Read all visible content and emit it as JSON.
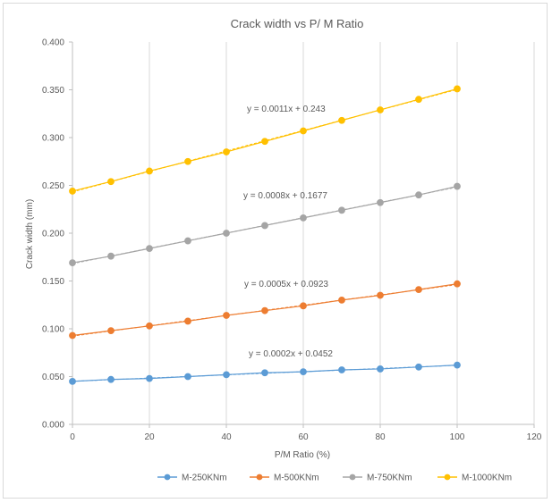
{
  "chart_data": {
    "type": "scatter",
    "title": "Crack width vs P/ M Ratio",
    "xlabel": "P/M Ratio (%)",
    "ylabel": "Crack width (mm)",
    "xlim": [
      0,
      120
    ],
    "ylim": [
      0,
      0.4
    ],
    "x_ticks": [
      "0",
      "20",
      "40",
      "60",
      "80",
      "100",
      "120"
    ],
    "y_ticks": [
      "0.000",
      "0.050",
      "0.100",
      "0.150",
      "0.200",
      "0.250",
      "0.300",
      "0.350",
      "0.400"
    ],
    "grid": "vertical",
    "legend_position": "bottom",
    "x": [
      0,
      10,
      20,
      30,
      40,
      50,
      60,
      70,
      80,
      90,
      100
    ],
    "series": [
      {
        "name": "M-250KNm",
        "color": "#5b9bd5",
        "trendline": true,
        "equation": "y = 0.0002x + 0.0452",
        "values": [
          0.045,
          0.047,
          0.048,
          0.05,
          0.052,
          0.054,
          0.055,
          0.057,
          0.058,
          0.06,
          0.062
        ]
      },
      {
        "name": "M-500KNm",
        "color": "#ed7d31",
        "trendline": true,
        "equation": "y = 0.0005x + 0.0923",
        "values": [
          0.093,
          0.098,
          0.103,
          0.108,
          0.114,
          0.119,
          0.124,
          0.13,
          0.135,
          0.141,
          0.147
        ]
      },
      {
        "name": "M-750KNm",
        "color": "#a5a5a5",
        "trendline": true,
        "equation": "y = 0.0008x + 0.1677",
        "values": [
          0.169,
          0.176,
          0.184,
          0.192,
          0.2,
          0.208,
          0.216,
          0.224,
          0.232,
          0.24,
          0.249
        ]
      },
      {
        "name": "M-1000KNm",
        "color": "#ffc000",
        "trendline": true,
        "equation": "y = 0.0011x + 0.243",
        "values": [
          0.244,
          0.254,
          0.265,
          0.275,
          0.285,
          0.296,
          0.307,
          0.318,
          0.329,
          0.34,
          0.351
        ]
      }
    ]
  }
}
